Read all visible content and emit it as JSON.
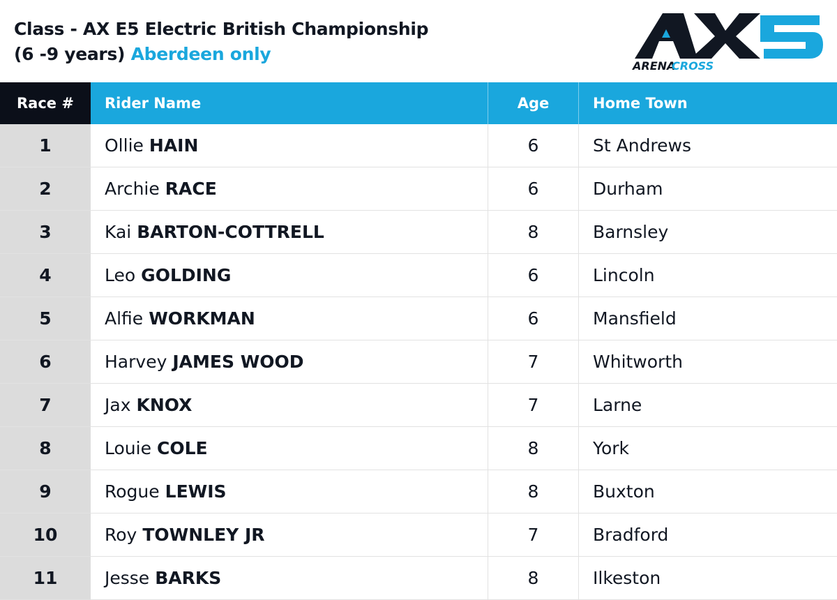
{
  "header": {
    "title_line1": "Class - AX E5 Electric British Championship",
    "title_line2": "(6 -9 years)",
    "highlight": "Aberdeen only"
  },
  "logo": {
    "word1": "ARENA",
    "word2": "CROSS"
  },
  "table": {
    "columns": [
      "Race #",
      "Rider Name",
      "Age",
      "Home Town"
    ],
    "rows": [
      [
        "1",
        "Ollie",
        "HAIN",
        "6",
        "St Andrews"
      ],
      [
        "2",
        "Archie",
        "RACE",
        "6",
        "Durham"
      ],
      [
        "3",
        "Kai",
        "BARTON-COTTRELL",
        "8",
        "Barnsley"
      ],
      [
        "4",
        "Leo",
        "GOLDING",
        "6",
        "Lincoln"
      ],
      [
        "5",
        "Alfie",
        "WORKMAN",
        "6",
        "Mansfield"
      ],
      [
        "6",
        "Harvey",
        "JAMES WOOD",
        "7",
        "Whitworth"
      ],
      [
        "7",
        "Jax",
        "KNOX",
        "7",
        "Larne"
      ],
      [
        "8",
        "Louie",
        "COLE",
        "8",
        "York"
      ],
      [
        "9",
        "Rogue",
        "LEWIS",
        "8",
        "Buxton"
      ],
      [
        "10",
        "Roy",
        "TOWNLEY JR",
        "7",
        "Bradford"
      ],
      [
        "11",
        "Jesse",
        "BARKS",
        "8",
        "Ilkeston"
      ]
    ]
  }
}
